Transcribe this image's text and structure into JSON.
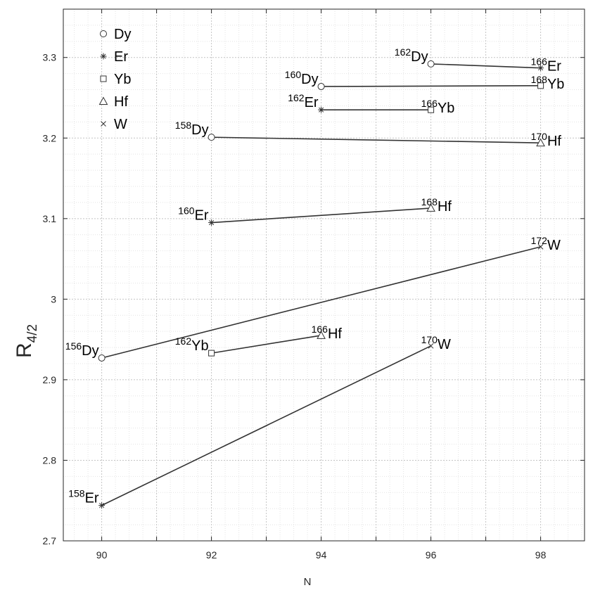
{
  "chart_data": {
    "type": "scatter",
    "xlabel": "N",
    "ylabel_main": "R",
    "ylabel_sub": "4/2",
    "xlim": [
      89.3,
      98.8
    ],
    "ylim": [
      2.7,
      3.36
    ],
    "xticks": [
      90,
      92,
      94,
      96,
      98
    ],
    "xtick_labels": [
      "90",
      "92",
      "94",
      "96",
      "98"
    ],
    "yticks": [
      2.7,
      2.8,
      2.9,
      3.0,
      3.1,
      3.2,
      3.3
    ],
    "ytick_labels": [
      "2.7",
      "2.8",
      "2.9",
      "3",
      "3.1",
      "3.2",
      "3.3"
    ],
    "grid": true,
    "legend_position": "top-left",
    "legend": [
      {
        "element": "Dy",
        "marker": "circle"
      },
      {
        "element": "Er",
        "marker": "asterisk"
      },
      {
        "element": "Yb",
        "marker": "square"
      },
      {
        "element": "Hf",
        "marker": "triangle"
      },
      {
        "element": "W",
        "marker": "cross"
      }
    ],
    "pairs": [
      {
        "a": {
          "mass": "156",
          "element": "Dy",
          "marker": "circle",
          "x": 90,
          "y": 2.927
        },
        "b": {
          "mass": "172",
          "element": "W",
          "marker": "cross",
          "x": 98,
          "y": 3.065
        }
      },
      {
        "a": {
          "mass": "158",
          "element": "Er",
          "marker": "asterisk",
          "x": 90,
          "y": 2.744
        },
        "b": {
          "mass": "170",
          "element": "W",
          "marker": "cross",
          "x": 96,
          "y": 2.942
        }
      },
      {
        "a": {
          "mass": "158",
          "element": "Dy",
          "marker": "circle",
          "x": 92,
          "y": 3.201
        },
        "b": {
          "mass": "170",
          "element": "Hf",
          "marker": "triangle",
          "x": 98,
          "y": 3.194
        }
      },
      {
        "a": {
          "mass": "160",
          "element": "Er",
          "marker": "asterisk",
          "x": 92,
          "y": 3.095
        },
        "b": {
          "mass": "168",
          "element": "Hf",
          "marker": "triangle",
          "x": 96,
          "y": 3.113
        }
      },
      {
        "a": {
          "mass": "162",
          "element": "Yb",
          "marker": "square",
          "x": 92,
          "y": 2.933
        },
        "b": {
          "mass": "166",
          "element": "Hf",
          "marker": "triangle",
          "x": 94,
          "y": 2.955
        }
      },
      {
        "a": {
          "mass": "160",
          "element": "Dy",
          "marker": "circle",
          "x": 94,
          "y": 3.264
        },
        "b": {
          "mass": "168",
          "element": "Yb",
          "marker": "square",
          "x": 98,
          "y": 3.265
        }
      },
      {
        "a": {
          "mass": "162",
          "element": "Er",
          "marker": "asterisk",
          "x": 94,
          "y": 3.235
        },
        "b": {
          "mass": "166",
          "element": "Yb",
          "marker": "square",
          "x": 96,
          "y": 3.235
        }
      },
      {
        "a": {
          "mass": "162",
          "element": "Dy",
          "marker": "circle",
          "x": 96,
          "y": 3.292
        },
        "b": {
          "mass": "166",
          "element": "Er",
          "marker": "asterisk",
          "x": 98,
          "y": 3.287
        }
      }
    ]
  }
}
